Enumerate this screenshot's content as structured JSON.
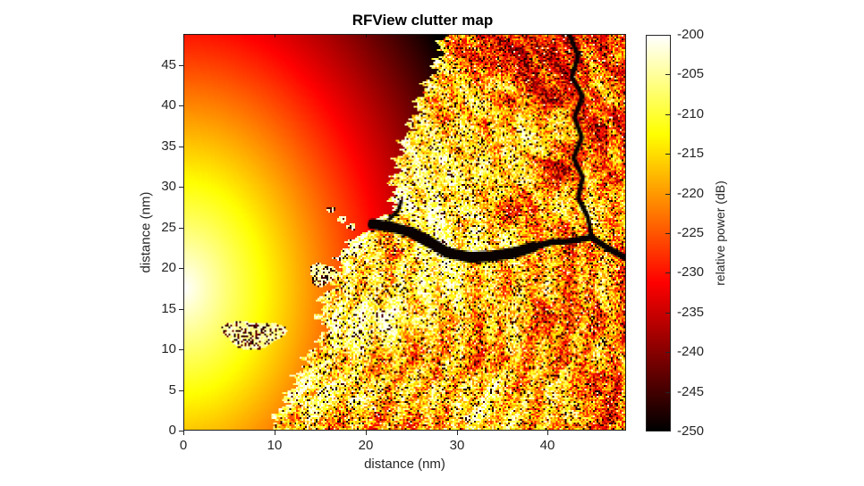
{
  "chart_data": {
    "type": "heatmap",
    "title": "RFView clutter map",
    "xlabel": "distance (nm)",
    "ylabel": "distance (nm)",
    "x_range_nm": [
      0,
      48.6
    ],
    "y_range_nm": [
      0,
      48.8
    ],
    "x_ticks": [
      0,
      10,
      20,
      30,
      40
    ],
    "y_ticks": [
      0,
      5,
      10,
      15,
      20,
      25,
      30,
      35,
      40,
      45
    ],
    "grid": false,
    "colorbar": {
      "label": "relative power (dB)",
      "ticks": [
        -200,
        -205,
        -210,
        -215,
        -220,
        -225,
        -230,
        -235,
        -240,
        -245,
        -250
      ],
      "value_range_db": [
        -250,
        -200
      ],
      "colormap": "hot"
    },
    "colormap_stops": [
      [
        0,
        "#000000"
      ],
      [
        0.125,
        "#550000"
      ],
      [
        0.25,
        "#aa0000"
      ],
      [
        0.375,
        "#ff0000"
      ],
      [
        0.5,
        "#ff5500"
      ],
      [
        0.625,
        "#ffaa00"
      ],
      [
        0.75,
        "#ffff00"
      ],
      [
        0.875,
        "#ffff80"
      ],
      [
        1,
        "#ffffff"
      ]
    ],
    "axis_color": "#262626",
    "scene": {
      "seed": 7,
      "radar_center_nm": {
        "x": 0,
        "y": 17.5
      },
      "sea": {
        "peak_db": -200,
        "decay_db_per_nm": 1.0,
        "x_stretch": 1.45,
        "y_stretch": 0.95
      },
      "land": {
        "base_db": -209,
        "range_falloff_db_per_nm": 0.45,
        "speckle_db": 11,
        "shore_brighten_band_nm": 3
      },
      "coastline_y_x_nm": [
        [
          48.8,
          28.6
        ],
        [
          46,
          27.9
        ],
        [
          44,
          27.3
        ],
        [
          42,
          26.2
        ],
        [
          40,
          25.6
        ],
        [
          38,
          25.0
        ],
        [
          36,
          24.2
        ],
        [
          34,
          23.7
        ],
        [
          32,
          23.2
        ],
        [
          30,
          22.8
        ],
        [
          28,
          23.2
        ],
        [
          26.6,
          22.4
        ],
        [
          26.0,
          21.8
        ],
        [
          25.0,
          20.4
        ],
        [
          24.0,
          19.5
        ],
        [
          23.0,
          18.0
        ],
        [
          22.0,
          17.0
        ],
        [
          21.0,
          17.3
        ],
        [
          20.0,
          17.0
        ],
        [
          19.0,
          16.6
        ],
        [
          18.0,
          16.3
        ],
        [
          16.0,
          15.1
        ],
        [
          14.0,
          14.9
        ],
        [
          12.0,
          15.6
        ],
        [
          10.0,
          14.1
        ],
        [
          8.0,
          13.1
        ],
        [
          6.0,
          12.2
        ],
        [
          4.0,
          11.2
        ],
        [
          2.0,
          10.3
        ],
        [
          0.0,
          9.4
        ]
      ],
      "islands_nm": [
        {
          "cx": 7.6,
          "cy": 11.8,
          "rx": 3.4,
          "ry": 1.7
        },
        {
          "cx": 15.3,
          "cy": 19.2,
          "rx": 1.5,
          "ry": 1.4
        },
        {
          "cx": 16.2,
          "cy": 27.2,
          "rx": 0.5,
          "ry": 0.38
        },
        {
          "cx": 17.4,
          "cy": 26.0,
          "rx": 0.55,
          "ry": 0.42
        },
        {
          "cx": 18.4,
          "cy": 25.1,
          "rx": 0.5,
          "ry": 0.4
        }
      ],
      "estuary_nm": [
        [
          20.8,
          25.4
        ],
        [
          23,
          25.0
        ],
        [
          25,
          24.4
        ],
        [
          27,
          23.2
        ],
        [
          29,
          21.9
        ],
        [
          31.5,
          21.3
        ],
        [
          34,
          21.5
        ],
        [
          36.5,
          21.9
        ],
        [
          38.5,
          22.6
        ],
        [
          40.5,
          23.2
        ],
        [
          42.5,
          23.3
        ],
        [
          44.9,
          23.8
        ],
        [
          46.6,
          22.5
        ],
        [
          48.7,
          21.2
        ]
      ],
      "river_nm": [
        [
          42.4,
          48.9
        ],
        [
          43.4,
          46.2
        ],
        [
          42.7,
          43.6
        ],
        [
          43.9,
          41.2
        ],
        [
          43.0,
          38.6
        ],
        [
          43.8,
          36.1
        ],
        [
          42.9,
          33.6
        ],
        [
          43.9,
          31.2
        ],
        [
          43.4,
          28.6
        ],
        [
          44.5,
          26.2
        ],
        [
          44.9,
          23.8
        ]
      ],
      "inlet_nm": [
        [
          22.6,
          26.0
        ],
        [
          23.6,
          27.1
        ],
        [
          23.9,
          28.2
        ]
      ],
      "channel_widths_nm": {
        "mouth": 1.15,
        "mid": 1.2,
        "far": 0.7,
        "river": 0.5,
        "inlet": 0.4
      }
    }
  }
}
